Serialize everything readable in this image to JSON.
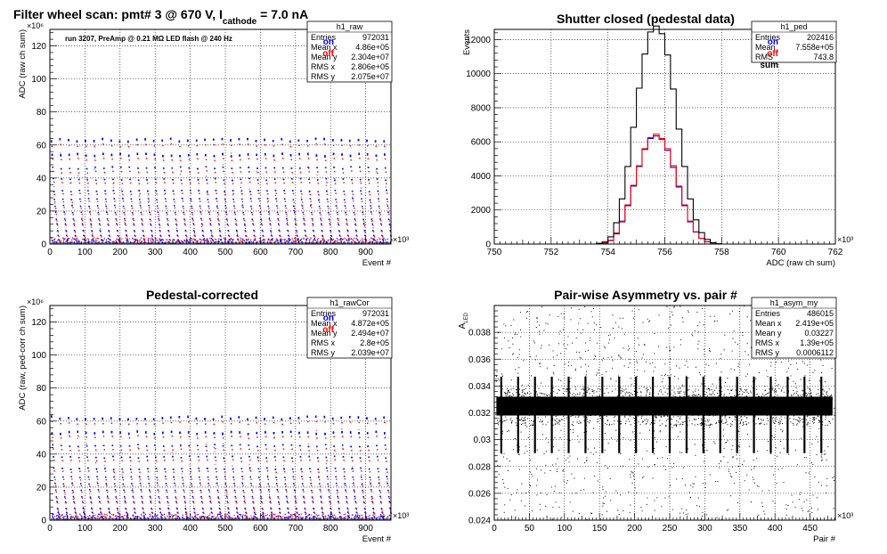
{
  "page": {
    "main_title_parts": [
      "Filter wheel scan: pmt#   3 @   670 V, I",
      "cathode",
      " = 7.0 nA"
    ]
  },
  "chart_data": [
    {
      "id": "raw",
      "type": "scatter",
      "title": "",
      "xlabel": "Event #",
      "ylabel": "ADC (raw ch sum)",
      "x_exponent": "×10³",
      "y_exponent": "×10⁶",
      "xlim": [
        0,
        972
      ],
      "ylim": [
        0,
        130
      ],
      "xticks": [
        0,
        100,
        200,
        300,
        400,
        500,
        600,
        700,
        800,
        900
      ],
      "yticks": [
        0,
        20,
        40,
        60,
        80,
        100,
        120
      ],
      "grid": true,
      "annotation": "run 3207, PreAmp @ 0.21 MΩ   LED flash @  240 Hz",
      "legend_position": "top-right",
      "series": [
        {
          "name": "on",
          "color": "#0000ff"
        },
        {
          "name": "off",
          "color": "#ff0000"
        }
      ],
      "levels": [
        63,
        54,
        46,
        39,
        32,
        27,
        23,
        19,
        15,
        12,
        8,
        5,
        2.5
      ],
      "stats": {
        "name": "h1_raw",
        "rows": [
          [
            "Entries",
            "972031"
          ],
          [
            "Mean x",
            "4.86e+05"
          ],
          [
            "Mean y",
            "2.304e+07"
          ],
          [
            "RMS x",
            "2.806e+05"
          ],
          [
            "RMS y",
            "2.075e+07"
          ]
        ]
      }
    },
    {
      "id": "ped",
      "type": "line",
      "title": "Shutter closed (pedestal data)",
      "xlabel": "ADC (raw ch sum)",
      "ylabel": "Events",
      "x_exponent": "×10³",
      "xlim": [
        750,
        762
      ],
      "ylim": [
        0,
        12600
      ],
      "xticks": [
        750,
        752,
        754,
        756,
        758,
        760,
        762
      ],
      "yticks": [
        0,
        2000,
        4000,
        6000,
        8000,
        10000,
        12000
      ],
      "grid": true,
      "legend_position": "top-right",
      "x": [
        753.6,
        753.8,
        754.0,
        754.2,
        754.4,
        754.6,
        754.8,
        755.0,
        755.2,
        755.4,
        755.6,
        755.8,
        756.0,
        756.2,
        756.4,
        756.6,
        756.8,
        757.0,
        757.2,
        757.4,
        757.6,
        757.8
      ],
      "series": [
        {
          "name": "on",
          "color": "#0000ff",
          "values": [
            20,
            60,
            200,
            600,
            1300,
            2250,
            3400,
            4550,
            5550,
            6200,
            6350,
            6150,
            5500,
            4500,
            3350,
            2250,
            1300,
            700,
            330,
            130,
            40,
            10
          ]
        },
        {
          "name": "off",
          "color": "#ff0000",
          "values": [
            20,
            60,
            220,
            650,
            1350,
            2300,
            3450,
            4600,
            5600,
            6250,
            6450,
            6200,
            5600,
            4600,
            3400,
            2300,
            1350,
            720,
            340,
            140,
            45,
            10
          ]
        },
        {
          "name": "sum",
          "color": "#000000",
          "values": [
            40,
            120,
            420,
            1250,
            2650,
            4550,
            6850,
            9150,
            11150,
            12450,
            12800,
            12350,
            11100,
            9100,
            6750,
            4550,
            2650,
            1420,
            670,
            270,
            85,
            20
          ]
        }
      ],
      "stats": {
        "name": "h1_ped",
        "rows": [
          [
            "Entries",
            "202416"
          ],
          [
            "Mean",
            "7.558e+05"
          ],
          [
            "RMS",
            "743.8"
          ]
        ]
      }
    },
    {
      "id": "cor",
      "type": "scatter",
      "title": "Pedestal-corrected",
      "xlabel": "Event #",
      "ylabel": "ADC (raw, ped-corr ch sum)",
      "x_exponent": "×10³",
      "y_exponent": "×10⁶",
      "xlim": [
        0,
        972
      ],
      "ylim": [
        0,
        130
      ],
      "xticks": [
        0,
        100,
        200,
        300,
        400,
        500,
        600,
        700,
        800,
        900
      ],
      "yticks": [
        0,
        20,
        40,
        60,
        80,
        100,
        120
      ],
      "grid": true,
      "legend_position": "top-right",
      "series": [
        {
          "name": "on",
          "color": "#0000ff"
        },
        {
          "name": "off",
          "color": "#ff0000"
        }
      ],
      "levels": [
        62,
        53,
        45,
        38,
        31,
        26,
        22,
        18,
        14,
        11,
        7,
        4.5,
        2
      ],
      "stats": {
        "name": "h1_rawCor",
        "rows": [
          [
            "Entries",
            "972031"
          ],
          [
            "Mean x",
            "4.872e+05"
          ],
          [
            "Mean y",
            "2.494e+07"
          ],
          [
            "RMS x",
            "2.8e+05"
          ],
          [
            "RMS y",
            "2.039e+07"
          ]
        ]
      }
    },
    {
      "id": "asym",
      "type": "scatter",
      "title": "Pair-wise Asymmetry vs. pair #",
      "xlabel": "Pair #",
      "ylabel": "A",
      "ylabel_sub": "LED",
      "x_exponent": "×10³",
      "xlim": [
        0,
        486
      ],
      "ylim": [
        0.024,
        0.04
      ],
      "xticks": [
        0,
        50,
        100,
        150,
        200,
        250,
        300,
        350,
        400,
        450
      ],
      "yticks": [
        0.024,
        0.026,
        0.028,
        0.03,
        0.032,
        0.034,
        0.036,
        0.038
      ],
      "grid": true,
      "band_center": 0.0325,
      "spike_period": 24,
      "stats": {
        "name": "h1_asym_my",
        "rows": [
          [
            "Entries",
            "486015"
          ],
          [
            "Mean x",
            "2.419e+05"
          ],
          [
            "Mean y",
            "0.03227"
          ],
          [
            "RMS x",
            "1.39e+05"
          ],
          [
            "RMS y",
            "0.0006112"
          ]
        ]
      }
    }
  ]
}
